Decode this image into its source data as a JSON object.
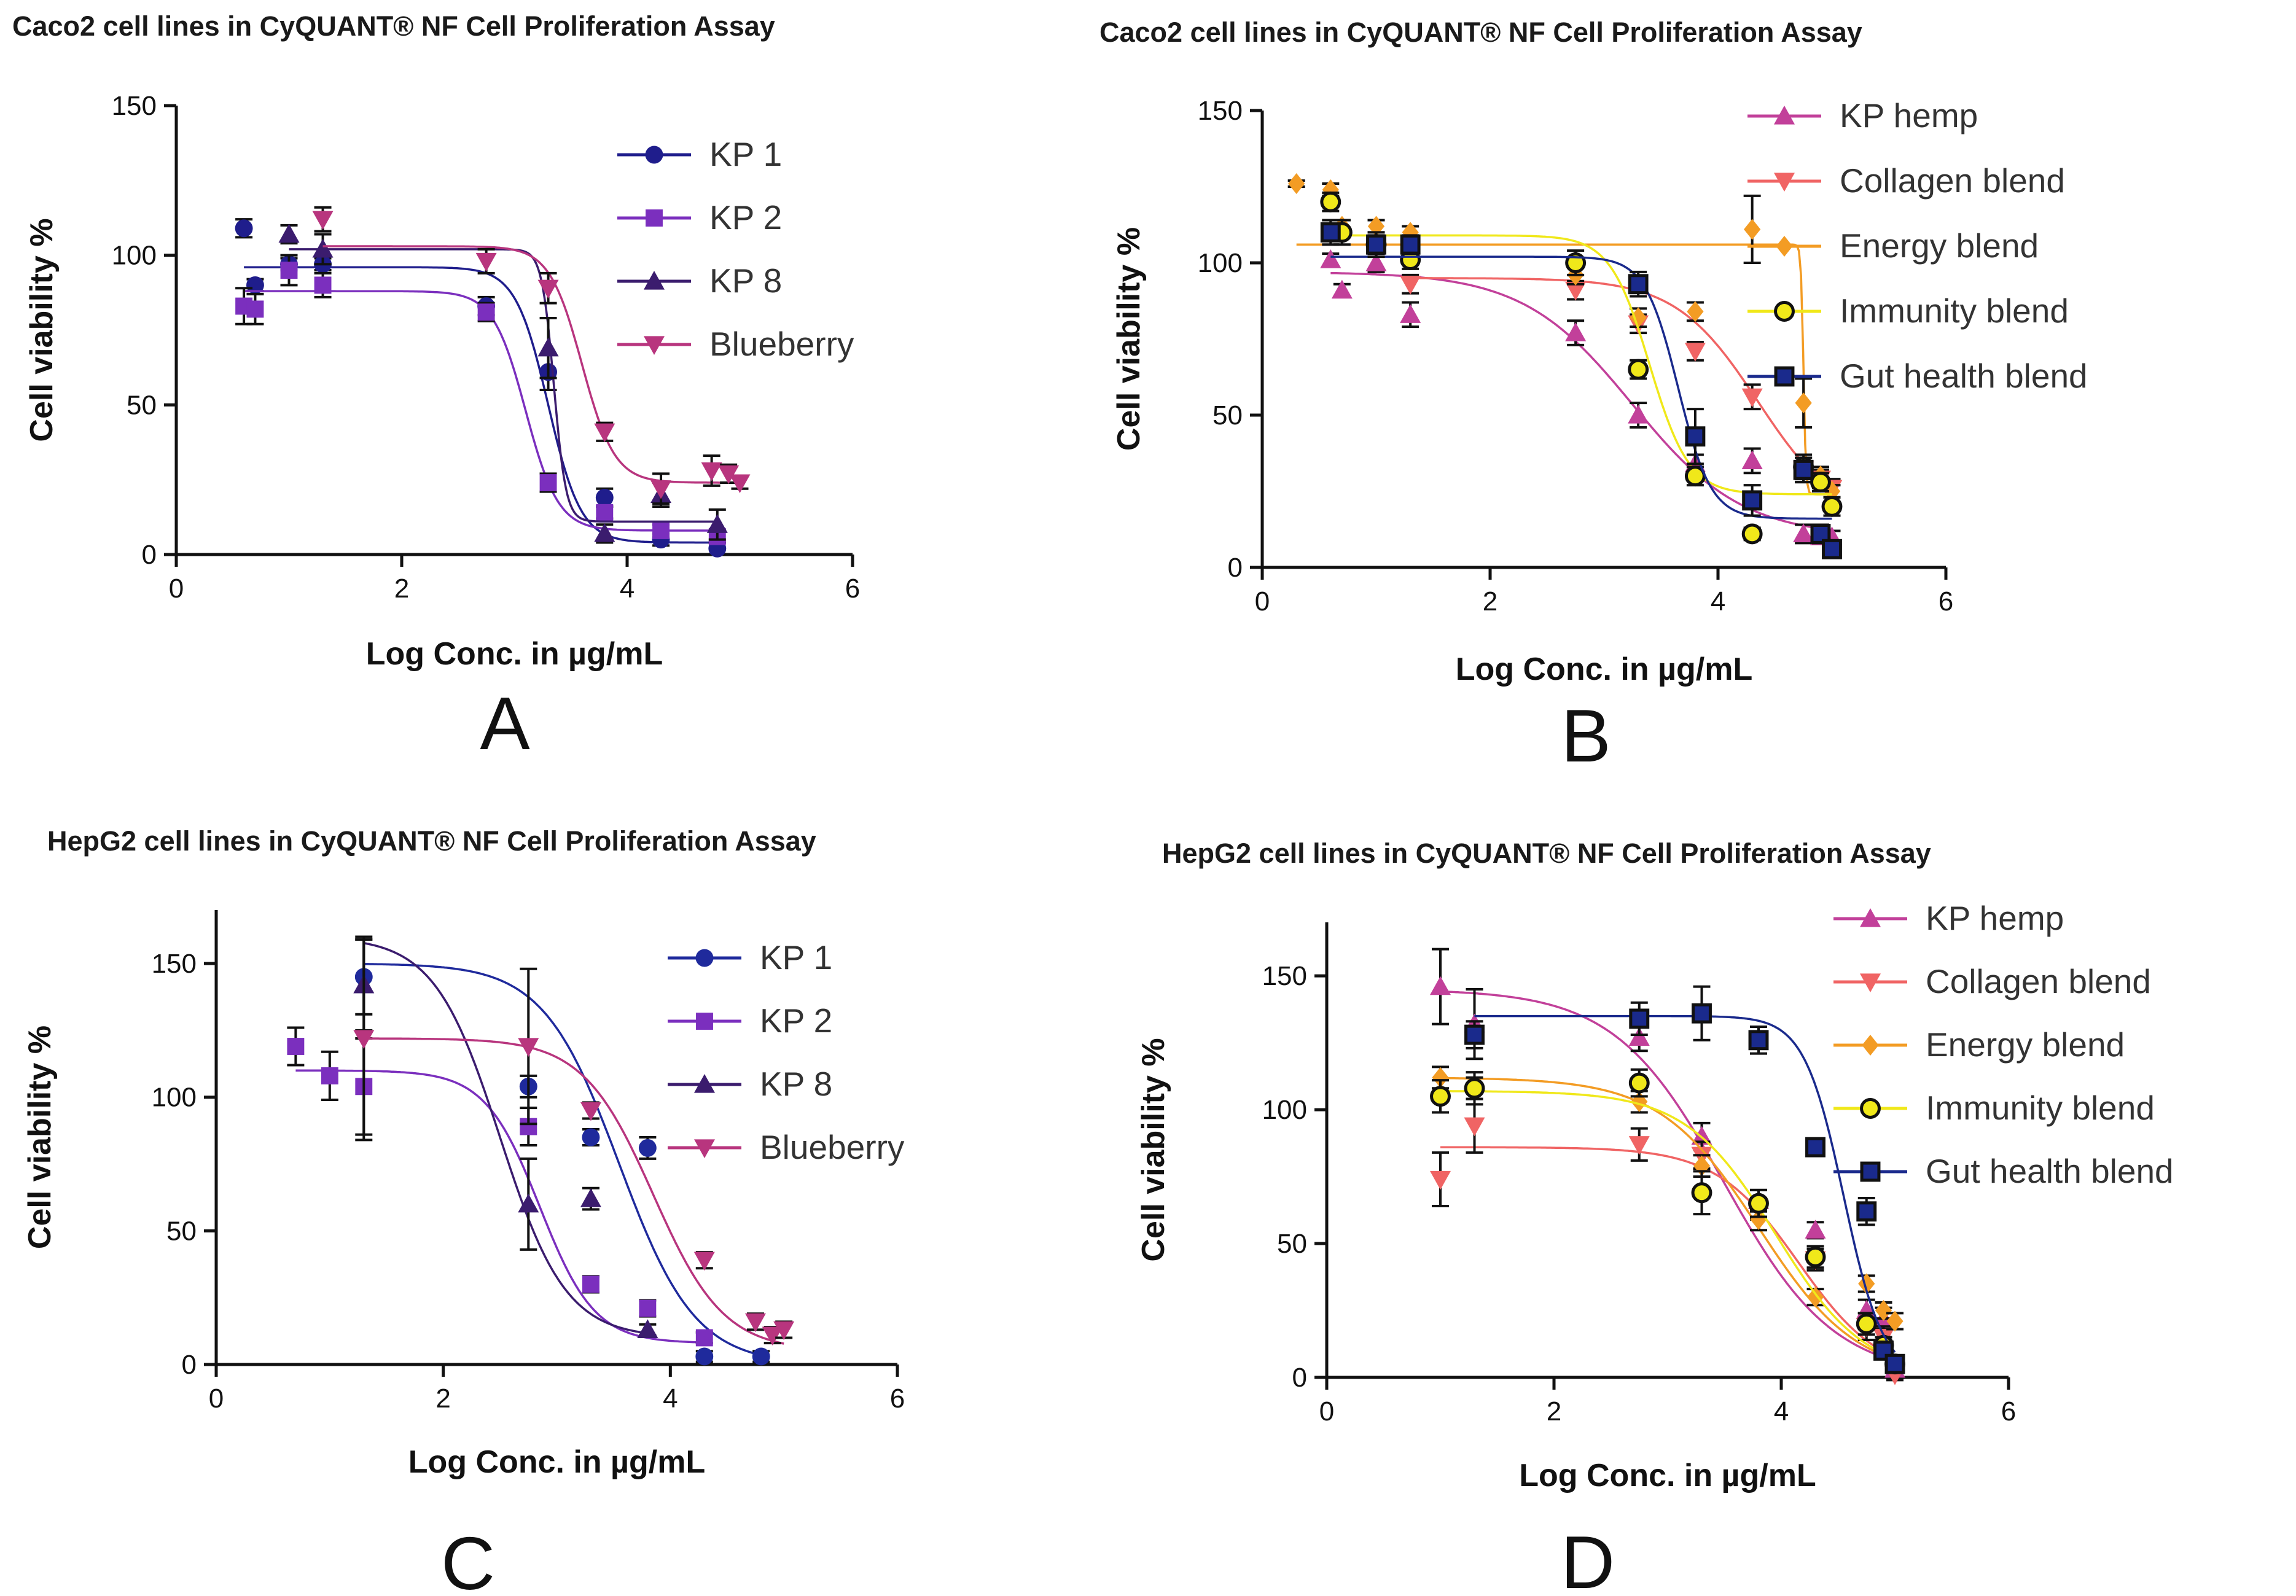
{
  "chart_data": [
    {
      "panel_label": "A",
      "type": "scatter",
      "title": "Caco2 cell lines in CyQUANT® NF Cell Proliferation Assay",
      "xlabel": "Log Conc. in µg/mL",
      "ylabel": "Cell viability %",
      "xlim": [
        0,
        6
      ],
      "ylim": [
        0,
        150
      ],
      "xticks": [
        0,
        2,
        4,
        6
      ],
      "yticks": [
        0,
        50,
        100,
        150
      ],
      "legend_position": "right",
      "series": [
        {
          "name": "KP 1",
          "marker": "circle",
          "color": "#1f1d8c",
          "x": [
            0.6,
            0.7,
            1.0,
            1.3,
            2.75,
            3.3,
            3.8,
            4.3,
            4.8
          ],
          "y": [
            109,
            90,
            97,
            97,
            83,
            61,
            19,
            5,
            2
          ],
          "err": [
            3,
            2,
            2,
            2,
            3,
            6,
            3,
            2,
            2
          ],
          "fit": {
            "top": 96,
            "bottom": 4,
            "logEC50": 3.3,
            "hill": -3
          }
        },
        {
          "name": "KP 2",
          "marker": "square",
          "color": "#7b2fbe",
          "x": [
            0.6,
            0.7,
            1.0,
            1.3,
            2.75,
            3.3,
            3.8,
            4.3,
            4.8
          ],
          "y": [
            83,
            82,
            95,
            90,
            81,
            24,
            14,
            8,
            6
          ],
          "err": [
            6,
            5,
            5,
            4,
            3,
            3,
            2,
            2,
            2
          ],
          "fit": {
            "top": 88,
            "bottom": 8,
            "logEC50": 3.1,
            "hill": -3
          }
        },
        {
          "name": "KP 8",
          "marker": "triangle-up",
          "color": "#3b1c6e",
          "x": [
            1.0,
            1.3,
            3.3,
            3.8,
            4.3,
            4.8
          ],
          "y": [
            107,
            102,
            69,
            7,
            20,
            10
          ],
          "err": [
            3,
            5,
            10,
            3,
            4,
            5
          ],
          "fit": {
            "top": 102,
            "bottom": 11,
            "logEC50": 3.35,
            "hill": -8
          }
        },
        {
          "name": "Blueberry",
          "marker": "triangle-down",
          "color": "#b8357e",
          "x": [
            1.3,
            2.75,
            3.3,
            3.8,
            4.3,
            4.75,
            4.9,
            5.0
          ],
          "y": [
            112,
            98,
            89,
            41,
            22,
            28,
            27,
            24
          ],
          "err": [
            4,
            4,
            5,
            3,
            5,
            5,
            3,
            2
          ],
          "fit": {
            "top": 103,
            "bottom": 24,
            "logEC50": 3.6,
            "hill": -3
          }
        }
      ]
    },
    {
      "panel_label": "B",
      "type": "scatter",
      "title": "Caco2 cell lines in CyQUANT® NF Cell Proliferation Assay",
      "xlabel": "Log Conc. in µg/mL",
      "ylabel": "Cell viability %",
      "xlim": [
        0,
        6
      ],
      "ylim": [
        0,
        150
      ],
      "xticks": [
        0,
        2,
        4,
        6
      ],
      "yticks": [
        0,
        50,
        100,
        150
      ],
      "legend_position": "right",
      "series": [
        {
          "name": "KP hemp",
          "marker": "triangle-up",
          "color": "#c2409a",
          "x": [
            0.6,
            0.7,
            1.0,
            1.3,
            2.75,
            3.3,
            3.8,
            4.3,
            4.75,
            4.9,
            5.0
          ],
          "y": [
            101,
            91,
            100,
            83,
            77,
            50,
            34,
            35,
            11,
            10,
            10
          ],
          "err": [
            2,
            2,
            3,
            4,
            4,
            4,
            3,
            4,
            3,
            2,
            2
          ],
          "fit": {
            "top": 97,
            "bottom": 10,
            "logEC50": 3.25,
            "hill": -0.9
          }
        },
        {
          "name": "Collagen blend",
          "marker": "triangle-down",
          "color": "#f06464",
          "x": [
            1.3,
            2.75,
            3.3,
            3.8,
            4.3,
            4.75,
            4.9,
            5.0
          ],
          "y": [
            93,
            91,
            80,
            71,
            56,
            32,
            29,
            26
          ],
          "err": [
            3,
            3,
            3,
            3,
            4,
            4,
            3,
            3
          ],
          "fit": {
            "top": 95,
            "bottom": 14,
            "logEC50": 4.35,
            "hill": -1.2
          }
        },
        {
          "name": "Energy blend",
          "marker": "diamond",
          "color": "#f39c24",
          "x": [
            0.3,
            0.6,
            0.7,
            1.0,
            1.3,
            2.75,
            3.3,
            3.8,
            4.3,
            4.75,
            4.9,
            5.0
          ],
          "y": [
            126,
            124,
            112,
            112,
            110,
            96,
            82,
            84,
            111,
            54,
            30,
            25
          ],
          "err": [
            1,
            2,
            2,
            2,
            2,
            3,
            3,
            3,
            11,
            8,
            3,
            2
          ],
          "fit": {
            "top": 106,
            "bottom": 24,
            "logEC50": 4.75,
            "hill": -40
          }
        },
        {
          "name": "Immunity blend",
          "marker": "circle",
          "color": "#f0e81a",
          "edge": "#111111",
          "x": [
            0.6,
            0.7,
            1.0,
            1.3,
            2.75,
            3.3,
            3.8,
            4.3,
            4.75,
            4.9,
            5.0
          ],
          "y": [
            120,
            110,
            106,
            101,
            100,
            65,
            30,
            11,
            33,
            28,
            20
          ],
          "err": [
            3,
            4,
            3,
            3,
            4,
            3,
            3,
            2,
            4,
            3,
            3
          ],
          "fit": {
            "top": 109,
            "bottom": 24,
            "logEC50": 3.4,
            "hill": -2.5
          }
        },
        {
          "name": "Gut health blend",
          "marker": "square",
          "color": "#1a2a8c",
          "edge": "#111111",
          "x": [
            0.6,
            1.0,
            1.3,
            3.3,
            3.8,
            4.3,
            4.75,
            4.9,
            5.0
          ],
          "y": [
            110,
            106,
            106,
            93,
            43,
            22,
            32,
            11,
            6
          ],
          "err": [
            4,
            4,
            3,
            4,
            9,
            5,
            4,
            3,
            2
          ],
          "fit": {
            "top": 102,
            "bottom": 16,
            "logEC50": 3.65,
            "hill": -3
          }
        }
      ]
    },
    {
      "panel_label": "C",
      "type": "scatter",
      "title": "HepG2 cell lines in CyQUANT® NF Cell Proliferation Assay",
      "xlabel": "Log Conc. in µg/mL",
      "ylabel": "Cell viability %",
      "xlim": [
        0,
        6
      ],
      "ylim": [
        0,
        170
      ],
      "xticks": [
        0,
        2,
        4,
        6
      ],
      "yticks": [
        0,
        50,
        100,
        150
      ],
      "legend_position": "right",
      "series": [
        {
          "name": "KP 1",
          "marker": "circle",
          "color": "#1f2a9c",
          "x": [
            1.3,
            2.75,
            3.3,
            3.8,
            4.3,
            4.8
          ],
          "y": [
            145,
            104,
            85,
            81,
            3,
            3
          ],
          "err": [
            14,
            4,
            3,
            4,
            2,
            2
          ],
          "fit": {
            "top": 150,
            "bottom": 0,
            "logEC50": 3.55,
            "hill": -1.3
          }
        },
        {
          "name": "KP 2",
          "marker": "square",
          "color": "#7b2fbe",
          "x": [
            0.7,
            1.0,
            1.3,
            2.75,
            3.3,
            3.8,
            4.3
          ],
          "y": [
            119,
            108,
            104,
            89,
            30,
            21,
            10
          ],
          "err": [
            7,
            9,
            18,
            7,
            3,
            3,
            2
          ],
          "fit": {
            "top": 110,
            "bottom": 8,
            "logEC50": 2.85,
            "hill": -1.8
          }
        },
        {
          "name": "KP 8",
          "marker": "triangle-up",
          "color": "#3b1c6e",
          "x": [
            1.3,
            2.75,
            3.3,
            3.8
          ],
          "y": [
            142,
            60,
            62,
            13
          ],
          "err": [
            17,
            17,
            4,
            2
          ],
          "fit": {
            "top": 160,
            "bottom": 10,
            "logEC50": 2.5,
            "hill": -1.5
          }
        },
        {
          "name": "Blueberry",
          "marker": "triangle-down",
          "color": "#b8357e",
          "x": [
            1.3,
            2.75,
            3.3,
            4.3,
            4.75,
            4.9,
            5.0
          ],
          "y": [
            122,
            119,
            95,
            39,
            16,
            11,
            13
          ],
          "err": [
            38,
            29,
            3,
            3,
            3,
            3,
            3
          ],
          "fit": {
            "top": 122,
            "bottom": 5,
            "logEC50": 3.85,
            "hill": -1.4
          }
        }
      ]
    },
    {
      "panel_label": "D",
      "type": "scatter",
      "title": "HepG2 cell lines in CyQUANT® NF Cell Proliferation Assay",
      "xlabel": "Log Conc. in µg/mL",
      "ylabel": "Cell viability %",
      "xlim": [
        0,
        6
      ],
      "ylim": [
        0,
        170
      ],
      "xticks": [
        0,
        2,
        4,
        6
      ],
      "yticks": [
        0,
        50,
        100,
        150
      ],
      "legend_position": "top-right",
      "series": [
        {
          "name": "KP hemp",
          "marker": "triangle-up",
          "color": "#c2409a",
          "x": [
            1.0,
            1.3,
            2.75,
            3.3,
            3.8,
            4.3,
            4.75,
            4.9,
            5.0
          ],
          "y": [
            146,
            132,
            127,
            90,
            66,
            55,
            25,
            22,
            3
          ],
          "err": [
            14,
            13,
            5,
            5,
            4,
            3,
            4,
            4,
            2
          ],
          "fit": {
            "top": 145,
            "bottom": 0,
            "logEC50": 3.5,
            "hill": -0.9
          }
        },
        {
          "name": "Collagen blend",
          "marker": "triangle-down",
          "color": "#f06464",
          "x": [
            1.0,
            1.3,
            2.75,
            3.3,
            3.8,
            4.3,
            4.75,
            4.9,
            5.0
          ],
          "y": [
            74,
            94,
            87,
            83,
            63,
            44,
            19,
            15,
            1
          ],
          "err": [
            10,
            10,
            6,
            5,
            4,
            4,
            5,
            4,
            2
          ],
          "fit": {
            "top": 86,
            "bottom": 0,
            "logEC50": 4.15,
            "hill": -1.2
          }
        },
        {
          "name": "Energy blend",
          "marker": "diamond",
          "color": "#f39c24",
          "x": [
            1.0,
            1.3,
            2.75,
            3.3,
            3.8,
            4.3,
            4.75,
            4.9,
            5.0
          ],
          "y": [
            112,
            108,
            103,
            79,
            59,
            30,
            35,
            25,
            21
          ],
          "err": [
            4,
            4,
            4,
            4,
            4,
            3,
            3,
            3,
            3
          ],
          "fit": {
            "top": 112,
            "bottom": 0,
            "logEC50": 3.8,
            "hill": -1
          }
        },
        {
          "name": "Immunity blend",
          "marker": "circle",
          "color": "#f0e81a",
          "edge": "#111111",
          "x": [
            1.0,
            1.3,
            2.75,
            3.3,
            3.8,
            4.3,
            4.75,
            4.9,
            5.0
          ],
          "y": [
            105,
            108,
            110,
            69,
            65,
            45,
            20,
            12,
            5
          ],
          "err": [
            6,
            6,
            5,
            8,
            5,
            4,
            4,
            3,
            3
          ],
          "fit": {
            "top": 107,
            "bottom": 0,
            "logEC50": 3.95,
            "hill": -1.1
          }
        },
        {
          "name": "Gut health blend",
          "marker": "square",
          "color": "#1a2a8c",
          "edge": "#111111",
          "x": [
            1.3,
            2.75,
            3.3,
            3.8,
            4.3,
            4.75,
            4.9,
            5.0
          ],
          "y": [
            128,
            134,
            136,
            126,
            86,
            62,
            10,
            5
          ],
          "err": [
            5,
            6,
            10,
            5,
            3,
            5,
            3,
            2
          ],
          "fit": {
            "top": 135,
            "bottom": 0,
            "logEC50": 4.55,
            "hill": -2.5
          }
        }
      ]
    }
  ]
}
